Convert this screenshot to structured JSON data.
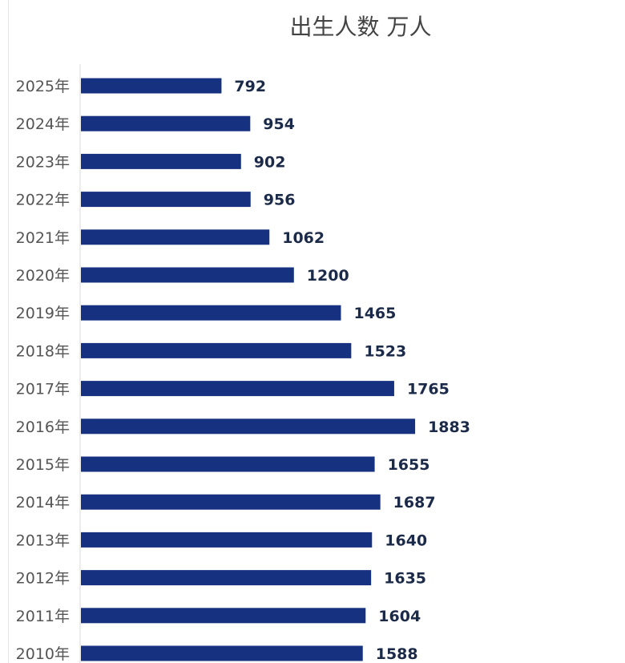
{
  "chart_data": {
    "type": "bar",
    "orientation": "horizontal",
    "title": "出生人数 万人",
    "categories": [
      "2025年",
      "2024年",
      "2023年",
      "2022年",
      "2021年",
      "2020年",
      "2019年",
      "2018年",
      "2017年",
      "2016年",
      "2015年",
      "2014年",
      "2013年",
      "2012年",
      "2011年",
      "2010年"
    ],
    "values": [
      792,
      954,
      902,
      956,
      1062,
      1200,
      1465,
      1523,
      1765,
      1883,
      1655,
      1687,
      1640,
      1635,
      1604,
      1588
    ],
    "xlabel": "",
    "ylabel": "",
    "grid": false,
    "data_labels": true,
    "colors": {
      "bar": "#15317f",
      "label": "#1b2a48",
      "tick": "#555555"
    }
  }
}
